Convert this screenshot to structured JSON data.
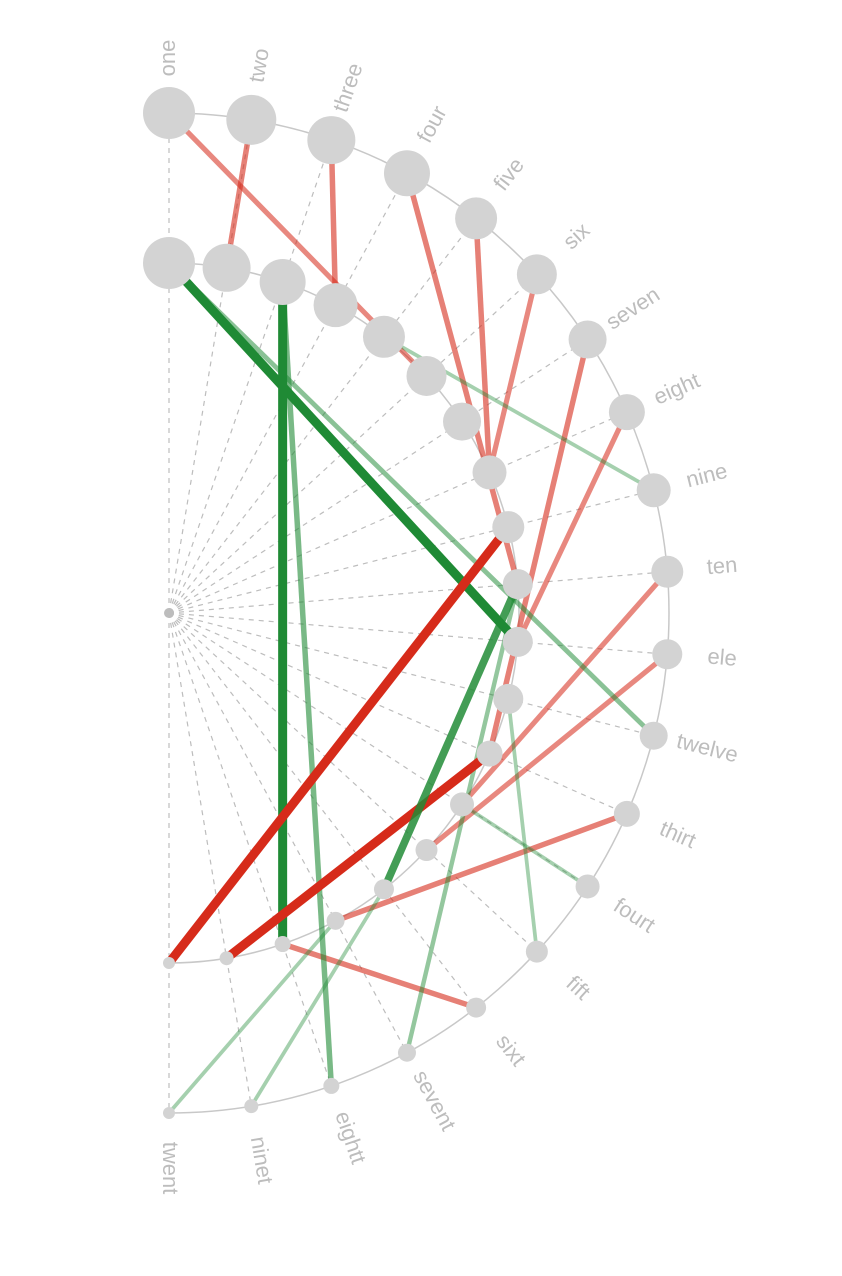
{
  "chart_data": {
    "type": "arc-alignment",
    "title": "",
    "colors": {
      "node": "#d3d3d3",
      "label": "#bdbdbd",
      "arc": "#c8c8c8",
      "guide": "#bdbdbd",
      "positive": "#1f8a35",
      "negative": "#d62b1a"
    },
    "outer_ring": [
      {
        "label": "one",
        "size": 26
      },
      {
        "label": "two",
        "size": 25
      },
      {
        "label": "three",
        "size": 24
      },
      {
        "label": "four",
        "size": 23
      },
      {
        "label": "five",
        "size": 21
      },
      {
        "label": "six",
        "size": 20
      },
      {
        "label": "seven",
        "size": 19
      },
      {
        "label": "eight",
        "size": 18
      },
      {
        "label": "nine",
        "size": 17
      },
      {
        "label": "ten",
        "size": 16
      },
      {
        "label": "ele",
        "size": 15
      },
      {
        "label": "twelve",
        "size": 14
      },
      {
        "label": "thirt",
        "size": 13
      },
      {
        "label": "fourt",
        "size": 12
      },
      {
        "label": "fift",
        "size": 11
      },
      {
        "label": "sixt",
        "size": 10
      },
      {
        "label": "sevent",
        "size": 9
      },
      {
        "label": "eightt",
        "size": 8
      },
      {
        "label": "ninet",
        "size": 7
      },
      {
        "label": "twent",
        "size": 6
      }
    ],
    "inner_ring": [
      {
        "size": 26
      },
      {
        "size": 24
      },
      {
        "size": 23
      },
      {
        "size": 22
      },
      {
        "size": 21
      },
      {
        "size": 20
      },
      {
        "size": 19
      },
      {
        "size": 17
      },
      {
        "size": 16
      },
      {
        "size": 15
      },
      {
        "size": 15
      },
      {
        "size": 15
      },
      {
        "size": 13
      },
      {
        "size": 12
      },
      {
        "size": 11
      },
      {
        "size": 10
      },
      {
        "size": 9
      },
      {
        "size": 8
      },
      {
        "size": 7
      },
      {
        "size": 6
      }
    ],
    "links": [
      {
        "outer": "one",
        "inner": 6,
        "value": -0.45
      },
      {
        "outer": "two",
        "inner": 2,
        "value": -0.5
      },
      {
        "outer": "three",
        "inner": 4,
        "value": -0.5
      },
      {
        "outer": "four",
        "inner": 10,
        "value": -0.5
      },
      {
        "outer": "five",
        "inner": 8,
        "value": -0.5
      },
      {
        "outer": "six",
        "inner": 8,
        "value": -0.45
      },
      {
        "outer": "seven",
        "inner": 13,
        "value": -0.5
      },
      {
        "outer": "eight",
        "inner": 11,
        "value": -0.45
      },
      {
        "outer": "nine",
        "inner": 5,
        "value": 0.25
      },
      {
        "outer": "ten",
        "inner": 14,
        "value": -0.45
      },
      {
        "outer": "ele",
        "inner": 15,
        "value": -0.45
      },
      {
        "outer": "twelve",
        "inner": 1,
        "value": 0.4
      },
      {
        "outer": "thirt",
        "inner": 17,
        "value": -0.5
      },
      {
        "outer": "fourt",
        "inner": 14,
        "value": 0.25
      },
      {
        "outer": "fift",
        "inner": 12,
        "value": 0.25
      },
      {
        "outer": "sixt",
        "inner": 18,
        "value": -0.5
      },
      {
        "outer": "sevent",
        "inner": 10,
        "value": 0.35
      },
      {
        "outer": "eightt",
        "inner": 3,
        "value": 0.5
      },
      {
        "outer": "ninet",
        "inner": 16,
        "value": 0.25
      },
      {
        "outer": "twent",
        "inner": 17,
        "value": 0.25
      },
      {
        "inner_from": 1,
        "inner_to": 11,
        "value": 1.0
      },
      {
        "inner_from": 3,
        "inner_to": 18,
        "value": 1.0
      },
      {
        "inner_from": 9,
        "inner_to": 20,
        "value": -1.0
      },
      {
        "inner_from": 13,
        "inner_to": 19,
        "value": -1.0
      },
      {
        "inner_from": 10,
        "inner_to": 16,
        "value": 0.8
      }
    ]
  }
}
